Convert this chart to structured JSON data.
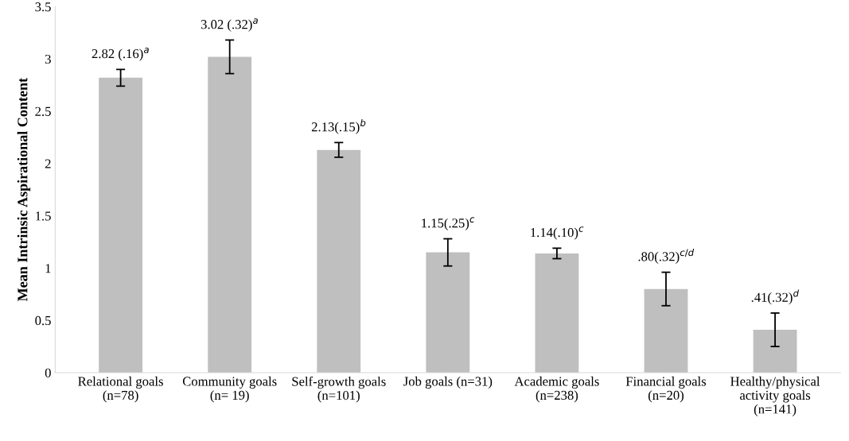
{
  "chart_data": {
    "type": "bar",
    "ylabel": "Mean Intrinsic Aspirational Content",
    "categories": [
      "Relational goals\n(n=78)",
      "Community goals\n(n= 19)",
      "Self-growth goals\n(n=101)",
      "Job goals (n=31)",
      "Academic goals\n(n=238)",
      "Financial goals\n(n=20)",
      "Healthy/physical\nactivity goals\n(n=141)"
    ],
    "values": [
      2.82,
      3.02,
      2.13,
      1.15,
      1.14,
      0.8,
      0.41
    ],
    "errors": [
      0.08,
      0.16,
      0.07,
      0.13,
      0.05,
      0.16,
      0.16
    ],
    "value_labels": [
      "2.82 (.16)$^{a}$",
      "3.02 (.32)$^{a}$",
      "2.13(.15)$^{b}$",
      "1.15(.25)$^{c}$",
      "1.14(.10)$^{ c}$",
      ".80(.32)$^{c/d}$",
      ".41(.32)$^{d}$"
    ],
    "color": "#bfbfbf",
    "ylim": [
      0,
      3.5
    ],
    "yticks": [
      0,
      0.5,
      1,
      1.5,
      2,
      2.5,
      3,
      3.5
    ],
    "grid": false
  }
}
